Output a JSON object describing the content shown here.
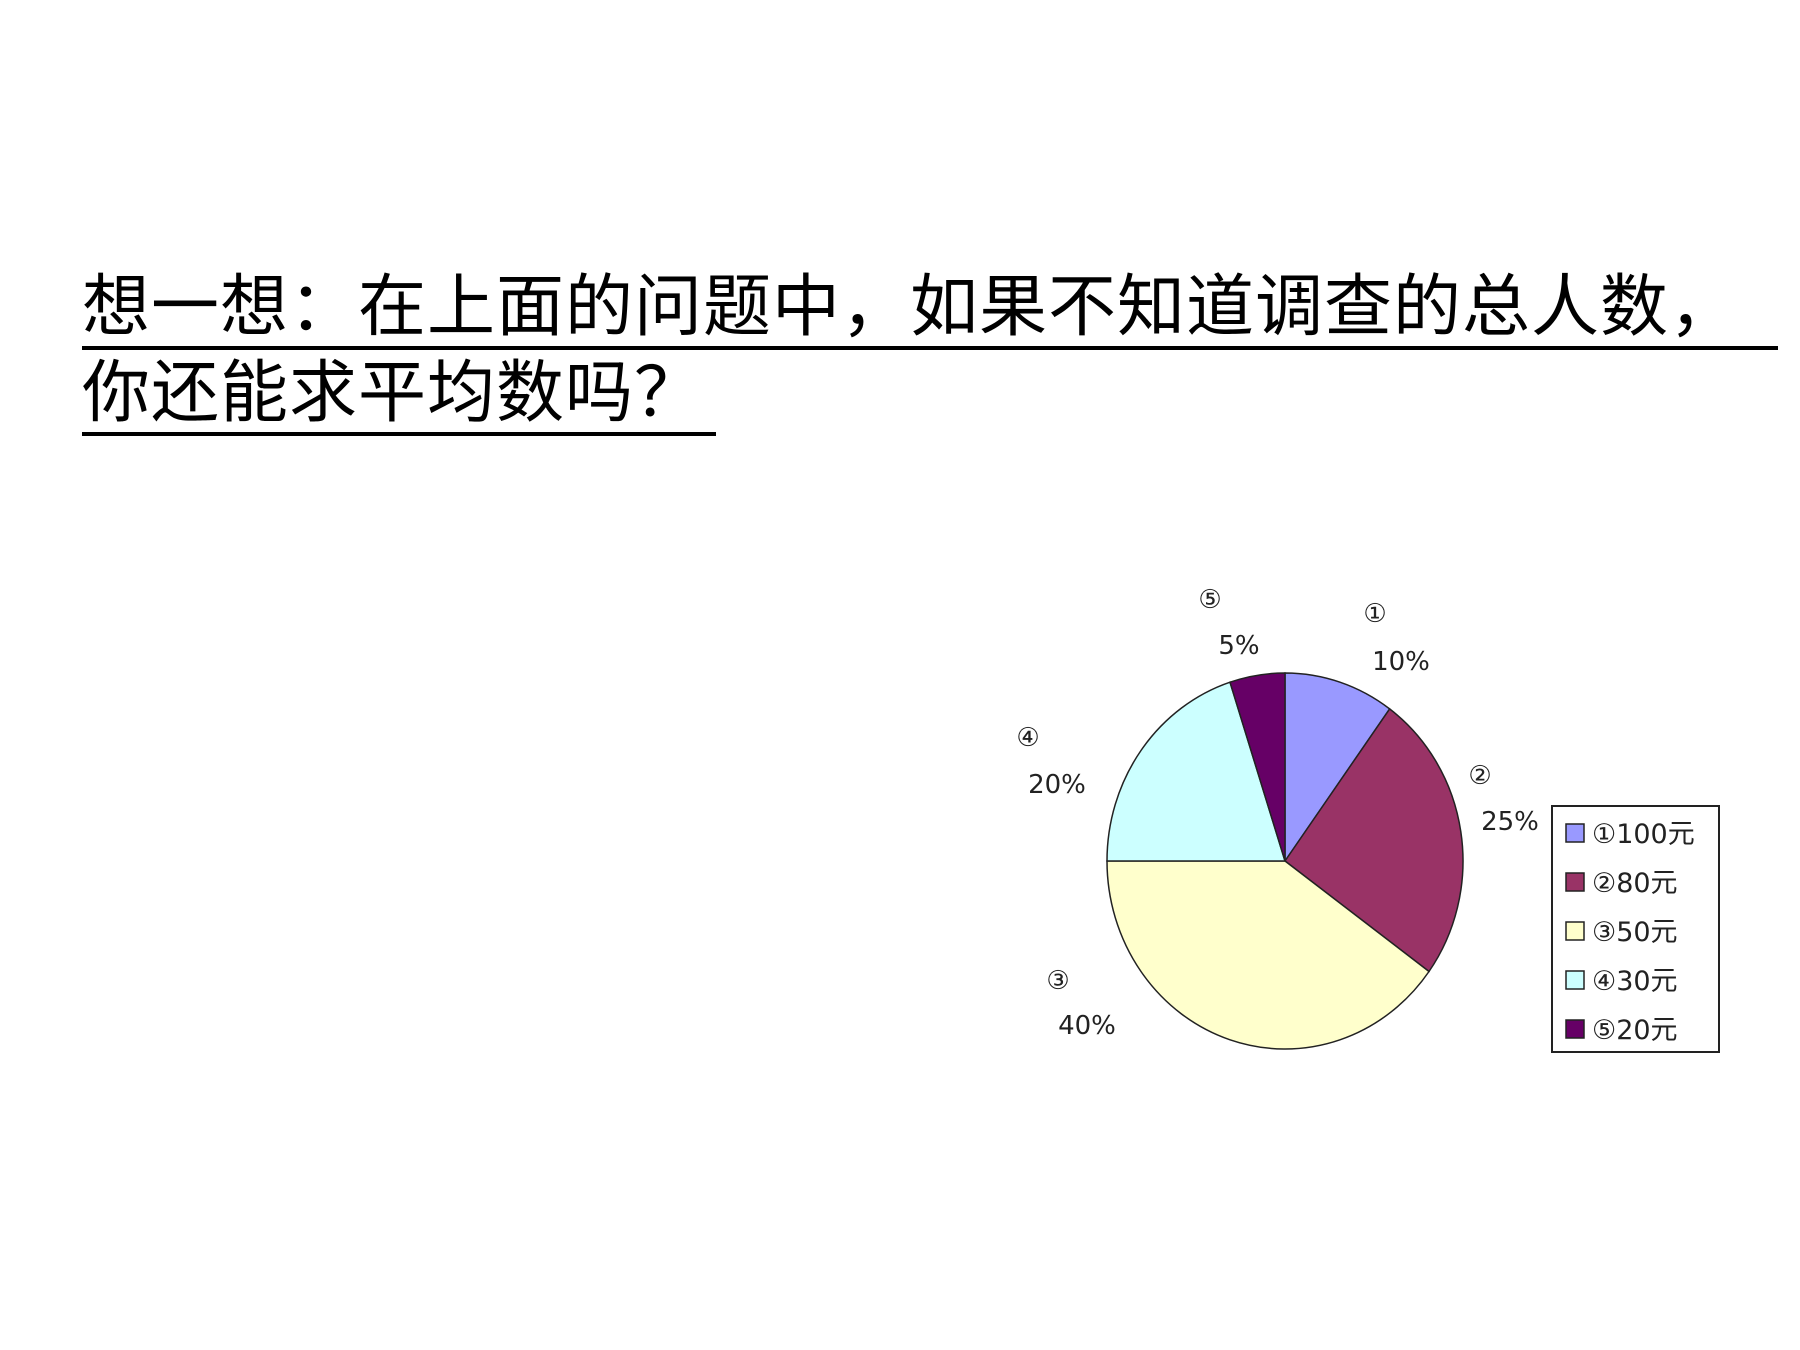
{
  "question": {
    "line1": "想一想：在上面的问题中，如果不知道调查的总人数，",
    "line2": "你还能求平均数吗？"
  },
  "chart_data": {
    "type": "pie",
    "title": "",
    "start": "12 o'clock, clockwise",
    "legend_position": "right",
    "slices": [
      {
        "marker": "①",
        "legend": "①100元",
        "value": 10,
        "label": "10%",
        "color": "#9999FF"
      },
      {
        "marker": "②",
        "legend": "②80元",
        "value": 25,
        "label": "25%",
        "color": "#993366"
      },
      {
        "marker": "③",
        "legend": "③50元",
        "value": 40,
        "label": "40%",
        "color": "#FFFFCC"
      },
      {
        "marker": "④",
        "legend": "④30元",
        "value": 20,
        "label": "20%",
        "color": "#CCFFFF"
      },
      {
        "marker": "⑤",
        "legend": "⑤20元",
        "value": 5,
        "label": "5%",
        "color": "#660066"
      }
    ]
  }
}
